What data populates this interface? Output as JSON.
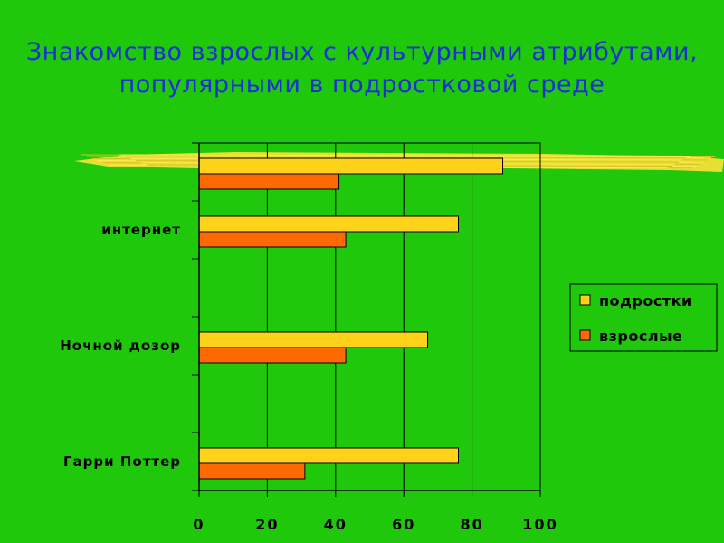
{
  "slide": {
    "title_line1": "Знакомство взрослых с культурными атрибутами,",
    "title_line2": "популярными  в подростковой среде",
    "title_color": "#1a2fd6",
    "background": "#1fc80a",
    "brush_stroke_color": "#f2e135"
  },
  "chart_data": {
    "type": "bar",
    "orientation": "horizontal",
    "categories": [
      "",
      "интернет",
      "",
      "Ночной дозор",
      "",
      "Гарри Поттер"
    ],
    "series": [
      {
        "name": "подростки",
        "color": "#ffd21a",
        "values": [
          89,
          76,
          null,
          67,
          null,
          76
        ]
      },
      {
        "name": "взрослые",
        "color": "#ff6a00",
        "values": [
          41,
          43,
          null,
          43,
          null,
          31
        ]
      }
    ],
    "xlim": [
      0,
      100
    ],
    "xticks": [
      "0",
      "20",
      "40",
      "60",
      "80",
      "100"
    ],
    "grid": true,
    "legend": "right"
  }
}
